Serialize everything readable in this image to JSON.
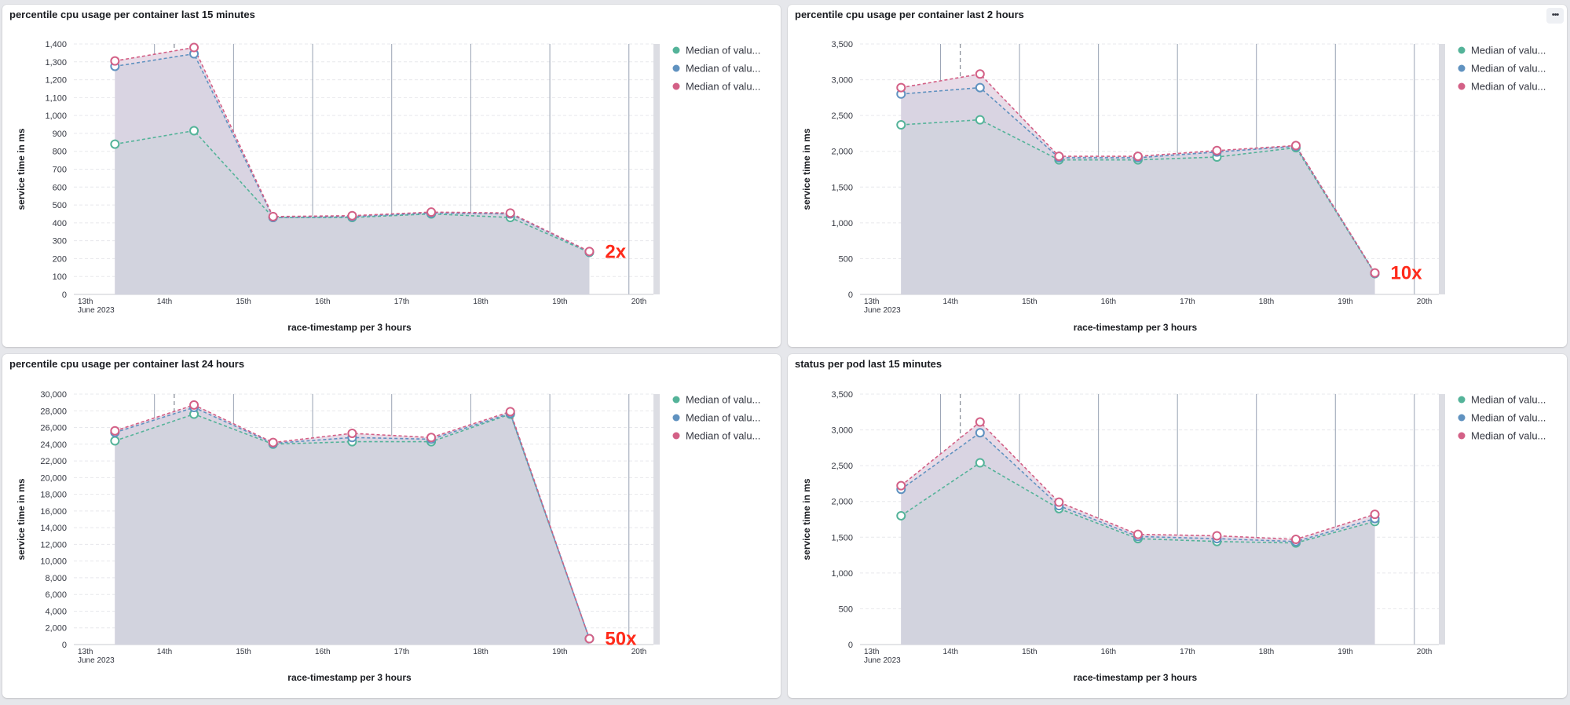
{
  "menu_icon": "ellipsis-icon",
  "colors": {
    "green": "#54b399",
    "blue": "#6092c0",
    "pink": "#d36086",
    "area": "#d2d3de",
    "area_pink": "#e8dbe7",
    "annotation": "#ff2a1a"
  },
  "chart_data": [
    {
      "type": "area",
      "title": "percentile cpu usage per container last 15 minutes",
      "xlabel": "race-timestamp per 3 hours",
      "ylabel": "service time in ms",
      "ylim": [
        0,
        1400
      ],
      "yticks": [
        0,
        100,
        200,
        300,
        400,
        500,
        600,
        700,
        800,
        900,
        1000,
        1100,
        1200,
        1300,
        1400
      ],
      "ytick_labels": [
        "0",
        "100",
        "200",
        "300",
        "400",
        "500",
        "600",
        "700",
        "800",
        "900",
        "1,000",
        "1,100",
        "1,200",
        "1,300",
        "1,400"
      ],
      "xlim": [
        0,
        7
      ],
      "xticks": [
        {
          "x": 0,
          "label": "13th",
          "sub": "June 2023"
        },
        {
          "x": 1,
          "label": "14th"
        },
        {
          "x": 2,
          "label": "15th"
        },
        {
          "x": 3,
          "label": "16th"
        },
        {
          "x": 4,
          "label": "17th"
        },
        {
          "x": 5,
          "label": "18th"
        },
        {
          "x": 6,
          "label": "19th"
        },
        {
          "x": 7,
          "label": "20th"
        }
      ],
      "x": [
        0.5,
        1.5,
        2.5,
        3.5,
        4.5,
        5.5,
        6.5
      ],
      "series": [
        {
          "name": "Median of valu...",
          "color": "#54b399",
          "values": [
            840,
            915,
            430,
            430,
            450,
            430,
            235
          ]
        },
        {
          "name": "Median of valu...",
          "color": "#6092c0",
          "values": [
            1275,
            1345,
            430,
            435,
            455,
            450,
            238
          ]
        },
        {
          "name": "Median of valu...",
          "color": "#d36086",
          "values": [
            1305,
            1380,
            435,
            440,
            460,
            455,
            240
          ]
        }
      ],
      "annotation": "2x",
      "legend": "right"
    },
    {
      "type": "area",
      "title": "percentile cpu usage per container last 2 hours",
      "xlabel": "race-timestamp per 3 hours",
      "ylabel": "service time in ms",
      "ylim": [
        0,
        3500
      ],
      "yticks": [
        0,
        500,
        1000,
        1500,
        2000,
        2500,
        3000,
        3500
      ],
      "ytick_labels": [
        "0",
        "500",
        "1,000",
        "1,500",
        "2,000",
        "2,500",
        "3,000",
        "3,500"
      ],
      "xlim": [
        0,
        7
      ],
      "xticks": [
        {
          "x": 0,
          "label": "13th",
          "sub": "June 2023"
        },
        {
          "x": 1,
          "label": "14th"
        },
        {
          "x": 2,
          "label": "15th"
        },
        {
          "x": 3,
          "label": "16th"
        },
        {
          "x": 4,
          "label": "17th"
        },
        {
          "x": 5,
          "label": "18th"
        },
        {
          "x": 6,
          "label": "19th"
        },
        {
          "x": 7,
          "label": "20th"
        }
      ],
      "x": [
        0.5,
        1.5,
        2.5,
        3.5,
        4.5,
        5.5,
        6.5
      ],
      "series": [
        {
          "name": "Median of valu...",
          "color": "#54b399",
          "values": [
            2370,
            2440,
            1880,
            1880,
            1920,
            2050,
            290
          ]
        },
        {
          "name": "Median of valu...",
          "color": "#6092c0",
          "values": [
            2800,
            2890,
            1910,
            1910,
            1990,
            2070,
            295
          ]
        },
        {
          "name": "Median of valu...",
          "color": "#d36086",
          "values": [
            2890,
            3080,
            1930,
            1930,
            2010,
            2080,
            300
          ]
        }
      ],
      "annotation": "10x",
      "legend": "right"
    },
    {
      "type": "area",
      "title": "percentile cpu usage per container last 24 hours",
      "xlabel": "race-timestamp per 3 hours",
      "ylabel": "service time in ms",
      "ylim": [
        0,
        30000
      ],
      "yticks": [
        0,
        2000,
        4000,
        6000,
        8000,
        10000,
        12000,
        14000,
        16000,
        18000,
        20000,
        22000,
        24000,
        26000,
        28000,
        30000
      ],
      "ytick_labels": [
        "0",
        "2,000",
        "4,000",
        "6,000",
        "8,000",
        "10,000",
        "12,000",
        "14,000",
        "16,000",
        "18,000",
        "20,000",
        "22,000",
        "24,000",
        "26,000",
        "28,000",
        "30,000"
      ],
      "xlim": [
        0,
        7
      ],
      "xticks": [
        {
          "x": 0,
          "label": "13th",
          "sub": "June 2023"
        },
        {
          "x": 1,
          "label": "14th"
        },
        {
          "x": 2,
          "label": "15th"
        },
        {
          "x": 3,
          "label": "16th"
        },
        {
          "x": 4,
          "label": "17th"
        },
        {
          "x": 5,
          "label": "18th"
        },
        {
          "x": 6,
          "label": "19th"
        },
        {
          "x": 7,
          "label": "20th"
        }
      ],
      "x": [
        0.5,
        1.5,
        2.5,
        3.5,
        4.5,
        5.5,
        6.5
      ],
      "series": [
        {
          "name": "Median of valu...",
          "color": "#54b399",
          "values": [
            24400,
            27600,
            24000,
            24300,
            24300,
            27600,
            700
          ]
        },
        {
          "name": "Median of valu...",
          "color": "#6092c0",
          "values": [
            25400,
            28400,
            24100,
            24800,
            24600,
            27700,
            700
          ]
        },
        {
          "name": "Median of valu...",
          "color": "#d36086",
          "values": [
            25600,
            28700,
            24200,
            25300,
            24800,
            27900,
            700
          ]
        }
      ],
      "annotation": "50x",
      "legend": "right"
    },
    {
      "type": "area",
      "title": "status per pod last 15 minutes",
      "xlabel": "race-timestamp per 3 hours",
      "ylabel": "service time in ms",
      "ylim": [
        0,
        3500
      ],
      "yticks": [
        0,
        500,
        1000,
        1500,
        2000,
        2500,
        3000,
        3500
      ],
      "ytick_labels": [
        "0",
        "500",
        "1,000",
        "1,500",
        "2,000",
        "2,500",
        "3,000",
        "3,500"
      ],
      "xlim": [
        0,
        7
      ],
      "xticks": [
        {
          "x": 0,
          "label": "13th",
          "sub": "June 2023"
        },
        {
          "x": 1,
          "label": "14th"
        },
        {
          "x": 2,
          "label": "15th"
        },
        {
          "x": 3,
          "label": "16th"
        },
        {
          "x": 4,
          "label": "17th"
        },
        {
          "x": 5,
          "label": "18th"
        },
        {
          "x": 6,
          "label": "19th"
        },
        {
          "x": 7,
          "label": "20th"
        }
      ],
      "x": [
        0.5,
        1.5,
        2.5,
        3.5,
        4.5,
        5.5,
        6.5
      ],
      "series": [
        {
          "name": "Median of valu...",
          "color": "#54b399",
          "values": [
            1800,
            2540,
            1900,
            1480,
            1440,
            1420,
            1720
          ]
        },
        {
          "name": "Median of valu...",
          "color": "#6092c0",
          "values": [
            2170,
            2960,
            1940,
            1510,
            1480,
            1440,
            1760
          ]
        },
        {
          "name": "Median of valu...",
          "color": "#d36086",
          "values": [
            2220,
            3110,
            1990,
            1540,
            1520,
            1470,
            1820
          ]
        }
      ],
      "annotation": "",
      "legend": "right"
    }
  ]
}
